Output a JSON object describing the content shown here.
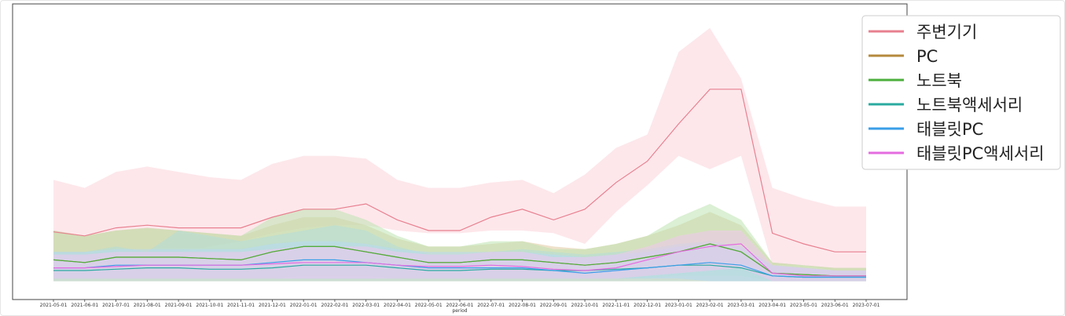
{
  "chart_data": {
    "type": "line",
    "title": "",
    "xlabel": "period",
    "ylabel": "",
    "grid": false,
    "legend_position": "top-right",
    "x": [
      "2021-05-01",
      "2021-06-01",
      "2021-07-01",
      "2021-08-01",
      "2021-09-01",
      "2021-10-01",
      "2021-11-01",
      "2021-12-01",
      "2022-01-01",
      "2022-02-01",
      "2022-03-01",
      "2022-04-01",
      "2022-05-01",
      "2022-06-01",
      "2022-07-01",
      "2022-08-01",
      "2022-09-01",
      "2022-10-01",
      "2022-11-01",
      "2022-12-01",
      "2023-01-01",
      "2023-02-01",
      "2023-03-01",
      "2023-04-01",
      "2023-05-01",
      "2023-06-01",
      "2023-07-01"
    ],
    "ylim": [
      0,
      100
    ],
    "series": [
      {
        "name": "주변기기",
        "color": "#e8808f",
        "band": "#fbd3da",
        "values": [
          19.5,
          18,
          21,
          22,
          21,
          21,
          21,
          25,
          28,
          28,
          30,
          24,
          20,
          20,
          25,
          28,
          24,
          28,
          38,
          46,
          60,
          73,
          73,
          19,
          15,
          12,
          12
        ],
        "lower": [
          7,
          7,
          9,
          10,
          12,
          14,
          16,
          19,
          21,
          22,
          22,
          20,
          19,
          19,
          20,
          20,
          19,
          15,
          27,
          37,
          48,
          43,
          48,
          7,
          7,
          5,
          5
        ],
        "upper": [
          39,
          36,
          42,
          44,
          42,
          40,
          39,
          45,
          48,
          48,
          47,
          39,
          36,
          36,
          38,
          39,
          34,
          41,
          51,
          56,
          87,
          96,
          77,
          36,
          32,
          29,
          29
        ]
      },
      {
        "name": "PC",
        "color": "#b58a3e",
        "band": "#e0c9a0",
        "values": [
          9,
          8,
          10,
          10,
          10,
          9.5,
          9,
          12,
          14,
          14,
          12,
          10,
          8,
          8,
          9,
          9,
          8,
          7,
          8,
          10,
          12,
          15,
          12,
          4,
          3.5,
          3,
          3
        ],
        "lower": [
          1,
          1,
          1,
          1,
          1,
          1,
          1,
          1,
          1,
          1,
          1,
          1,
          1,
          1,
          1,
          1,
          1,
          1,
          1,
          1,
          1,
          1,
          1,
          1,
          1,
          1,
          1
        ],
        "upper": [
          20,
          18,
          20,
          21,
          20,
          19,
          18,
          22,
          25,
          25,
          22,
          17,
          14,
          14,
          15,
          16,
          14,
          13,
          15,
          18,
          22,
          27,
          22,
          8,
          7,
          6,
          6
        ]
      },
      {
        "name": "노트북",
        "color": "#4caf3c",
        "band": "#bde3b0",
        "values": [
          9,
          8,
          10,
          10,
          10,
          9.5,
          9,
          12,
          14,
          14,
          12,
          10,
          8,
          8,
          9,
          9,
          8,
          7,
          8,
          10,
          12,
          15,
          12,
          4,
          3.5,
          3,
          3
        ],
        "lower": [
          2,
          2,
          2,
          2,
          2,
          2,
          2,
          2,
          3,
          3,
          3,
          2,
          2,
          2,
          2,
          2,
          2,
          2,
          2,
          2,
          3,
          3,
          3,
          1,
          1,
          1,
          1
        ],
        "upper": [
          20,
          18,
          20,
          21,
          20,
          19,
          18,
          25,
          28,
          28,
          24,
          18,
          14,
          14,
          16,
          16,
          13,
          13,
          15,
          18,
          25,
          30,
          24,
          8,
          7,
          6,
          6
        ]
      },
      {
        "name": "노트북액세서리",
        "color": "#2aaaa0",
        "band": "#b3dcd8",
        "values": [
          5,
          5,
          5.5,
          6,
          6,
          5.5,
          5.5,
          6,
          7,
          7,
          7,
          6,
          5,
          5,
          5.5,
          5.5,
          5,
          5,
          5.5,
          6,
          7,
          7,
          6,
          3,
          2.5,
          2.5,
          2.5
        ],
        "lower": [
          1,
          1,
          1,
          1,
          1,
          1,
          1,
          1,
          1,
          1,
          1,
          1,
          1,
          1,
          1,
          1,
          1,
          1,
          1,
          1,
          1,
          1,
          1,
          1,
          1,
          1,
          1
        ],
        "upper": [
          12,
          12,
          14,
          12,
          20,
          18,
          16,
          18,
          20,
          22,
          20,
          14,
          11,
          11,
          12,
          13,
          12,
          11,
          12,
          13,
          15,
          16,
          14,
          7,
          6,
          5,
          5
        ]
      },
      {
        "name": "태블릿PC",
        "color": "#3a9ee8",
        "band": "#b7d8f3",
        "values": [
          6,
          6,
          7,
          7,
          7,
          7,
          7,
          8,
          9,
          9,
          8,
          7,
          6,
          6,
          6,
          6,
          5,
          4,
          5,
          6,
          7,
          8,
          7,
          3,
          2.5,
          2.5,
          2.5
        ],
        "lower": [
          2,
          2,
          2,
          2,
          2,
          2,
          2,
          2,
          2,
          2,
          2,
          2,
          2,
          2,
          2,
          2,
          2,
          2,
          2,
          2,
          2,
          1,
          1,
          1,
          1,
          1,
          1
        ],
        "upper": [
          12,
          12,
          13,
          13,
          13,
          13,
          13,
          15,
          16,
          16,
          15,
          13,
          12,
          12,
          12,
          12,
          11,
          10,
          11,
          12,
          14,
          15,
          14,
          7,
          6,
          5,
          5
        ]
      },
      {
        "name": "태블릿PC액세서리",
        "color": "#e56be0",
        "band": "#f1c6ee",
        "values": [
          6,
          6,
          6.5,
          7,
          7,
          7,
          7,
          7.5,
          8,
          8,
          8,
          7,
          6.5,
          6.5,
          7,
          6.5,
          5.5,
          5,
          6,
          9,
          12,
          14,
          15,
          4,
          3,
          3,
          3
        ],
        "lower": [
          2,
          2,
          2,
          2,
          2,
          2,
          2,
          2,
          2,
          2,
          2,
          2,
          2,
          2,
          2,
          2,
          2,
          2,
          2,
          3,
          4,
          5,
          6,
          1,
          1,
          1,
          1
        ],
        "upper": [
          11,
          11,
          12,
          12,
          12,
          12,
          12,
          13,
          14,
          14,
          14,
          12,
          11,
          11,
          12,
          12,
          10,
          10,
          11,
          14,
          18,
          20,
          20,
          7,
          6,
          5,
          5
        ]
      }
    ]
  }
}
